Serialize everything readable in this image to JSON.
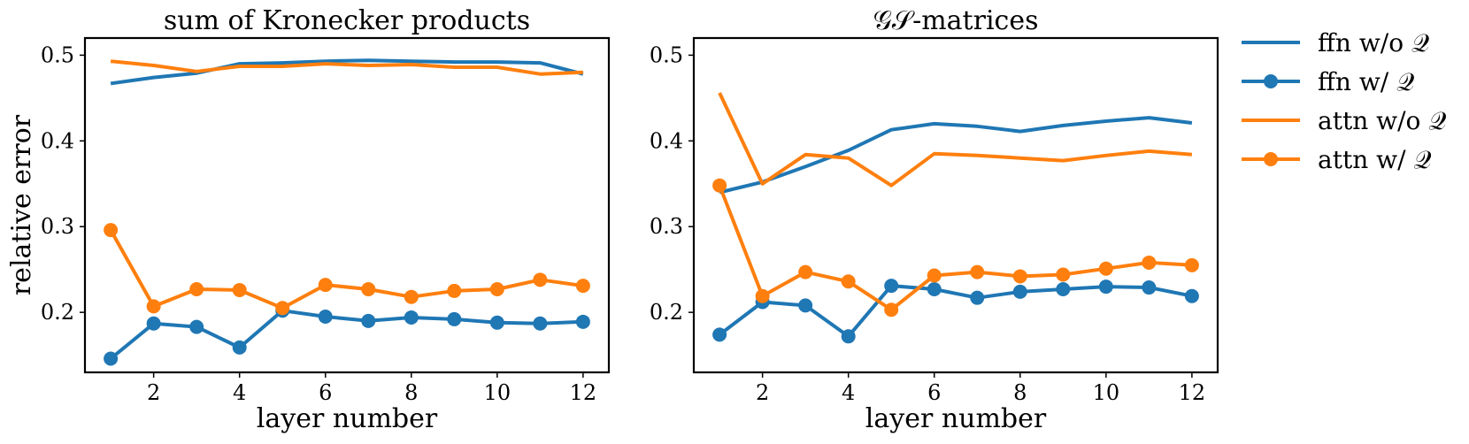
{
  "chart_data": [
    {
      "type": "line",
      "title": "sum of Kronecker products",
      "xlabel": "layer number",
      "ylabel": "relative error",
      "xlim": [
        0.4,
        12.6
      ],
      "ylim": [
        0.13,
        0.52
      ],
      "xticks": [
        2,
        4,
        6,
        8,
        10,
        12
      ],
      "yticks": [
        0.2,
        0.3,
        0.4,
        0.5
      ],
      "x": [
        1,
        2,
        3,
        4,
        5,
        6,
        7,
        8,
        9,
        10,
        11,
        12
      ],
      "series": [
        {
          "name": "ffn w/o 𝒬",
          "color": "#1f77b4",
          "marker": false,
          "values": [
            0.467,
            0.474,
            0.479,
            0.49,
            0.491,
            0.493,
            0.494,
            0.493,
            0.492,
            0.492,
            0.491,
            0.478
          ]
        },
        {
          "name": "ffn w/ 𝒬",
          "color": "#1f77b4",
          "marker": true,
          "values": [
            0.146,
            0.187,
            0.183,
            0.159,
            0.202,
            0.195,
            0.19,
            0.194,
            0.192,
            0.188,
            0.187,
            0.189
          ]
        },
        {
          "name": "attn w/o 𝒬",
          "color": "#ff7f0e",
          "marker": false,
          "values": [
            0.493,
            0.488,
            0.481,
            0.487,
            0.487,
            0.49,
            0.488,
            0.489,
            0.486,
            0.486,
            0.478,
            0.48
          ]
        },
        {
          "name": "attn w/ 𝒬",
          "color": "#ff7f0e",
          "marker": true,
          "values": [
            0.296,
            0.207,
            0.227,
            0.226,
            0.205,
            0.232,
            0.227,
            0.218,
            0.225,
            0.227,
            0.238,
            0.231
          ]
        }
      ]
    },
    {
      "type": "line",
      "title": "𝒢𝒮-matrices",
      "xlabel": "layer number",
      "ylabel": "",
      "xlim": [
        0.4,
        12.6
      ],
      "ylim": [
        0.13,
        0.52
      ],
      "xticks": [
        2,
        4,
        6,
        8,
        10,
        12
      ],
      "yticks": [
        0.2,
        0.3,
        0.4,
        0.5
      ],
      "x": [
        1,
        2,
        3,
        4,
        5,
        6,
        7,
        8,
        9,
        10,
        11,
        12
      ],
      "series": [
        {
          "name": "ffn w/o 𝒬",
          "color": "#1f77b4",
          "marker": false,
          "values": [
            0.34,
            0.352,
            0.37,
            0.389,
            0.413,
            0.42,
            0.417,
            0.411,
            0.418,
            0.423,
            0.427,
            0.421
          ]
        },
        {
          "name": "ffn w/ 𝒬",
          "color": "#1f77b4",
          "marker": true,
          "values": [
            0.174,
            0.212,
            0.208,
            0.172,
            0.231,
            0.227,
            0.217,
            0.224,
            0.227,
            0.23,
            0.229,
            0.219
          ]
        },
        {
          "name": "attn w/o 𝒬",
          "color": "#ff7f0e",
          "marker": false,
          "values": [
            0.456,
            0.35,
            0.384,
            0.38,
            0.348,
            0.385,
            0.383,
            0.38,
            0.377,
            0.383,
            0.388,
            0.384
          ]
        },
        {
          "name": "attn w/ 𝒬",
          "color": "#ff7f0e",
          "marker": true,
          "values": [
            0.348,
            0.219,
            0.247,
            0.236,
            0.203,
            0.243,
            0.247,
            0.242,
            0.244,
            0.251,
            0.258,
            0.255
          ]
        }
      ]
    }
  ],
  "legend": {
    "placement": "right, outside",
    "entries": [
      {
        "label": "ffn w/o 𝒬",
        "color": "#1f77b4",
        "marker": false
      },
      {
        "label": "ffn w/ 𝒬",
        "color": "#1f77b4",
        "marker": true
      },
      {
        "label": "attn w/o 𝒬",
        "color": "#ff7f0e",
        "marker": false
      },
      {
        "label": "attn w/ 𝒬",
        "color": "#ff7f0e",
        "marker": true
      }
    ]
  }
}
